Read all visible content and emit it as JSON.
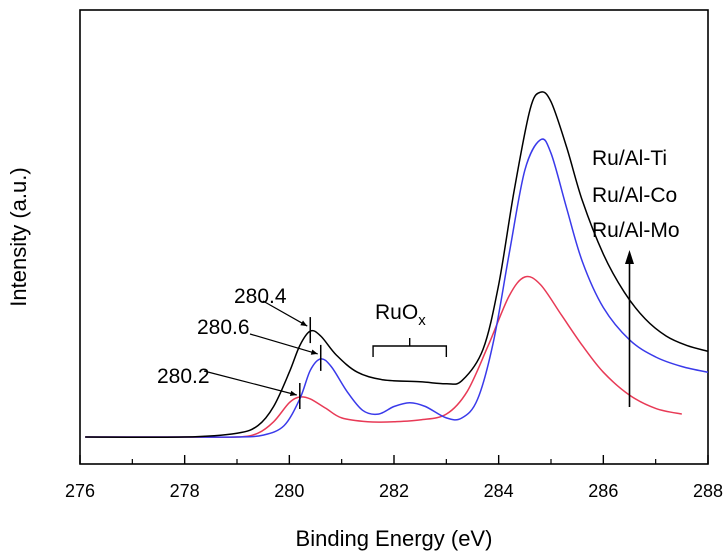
{
  "chart_data": {
    "type": "line",
    "xlabel": "Binding Energy (eV)",
    "ylabel": "Intensity (a.u.)",
    "xlim": [
      276,
      288
    ],
    "x_ticks": [
      "276",
      "278",
      "280",
      "282",
      "284",
      "286",
      "288"
    ],
    "grid": false,
    "legend": {
      "position": "top-right",
      "entries": [
        "Ru/Al-Ti",
        "Ru/Al-Co",
        "Ru/Al-Mo"
      ]
    },
    "series": [
      {
        "name": "Ru/Al-Ti",
        "color": "#000000",
        "points": [
          [
            276.1,
            0.0
          ],
          [
            278.0,
            0.0
          ],
          [
            279.0,
            0.01
          ],
          [
            279.4,
            0.03
          ],
          [
            279.7,
            0.08
          ],
          [
            280.0,
            0.17
          ],
          [
            280.2,
            0.24
          ],
          [
            280.4,
            0.278
          ],
          [
            280.6,
            0.265
          ],
          [
            280.9,
            0.215
          ],
          [
            281.3,
            0.17
          ],
          [
            281.8,
            0.15
          ],
          [
            282.5,
            0.145
          ],
          [
            283.0,
            0.14
          ],
          [
            283.3,
            0.148
          ],
          [
            283.7,
            0.23
          ],
          [
            284.0,
            0.4
          ],
          [
            284.3,
            0.65
          ],
          [
            284.6,
            0.86
          ],
          [
            284.8,
            0.905
          ],
          [
            285.0,
            0.88
          ],
          [
            285.3,
            0.76
          ],
          [
            285.6,
            0.62
          ],
          [
            286.0,
            0.48
          ],
          [
            286.4,
            0.38
          ],
          [
            286.8,
            0.31
          ],
          [
            287.2,
            0.265
          ],
          [
            287.6,
            0.24
          ],
          [
            288.0,
            0.225
          ]
        ]
      },
      {
        "name": "Ru/Al-Co",
        "color": "#3a3aea",
        "points": [
          [
            276.1,
            0.0
          ],
          [
            278.0,
            0.0
          ],
          [
            279.0,
            0.0
          ],
          [
            279.5,
            0.005
          ],
          [
            279.9,
            0.03
          ],
          [
            280.2,
            0.1
          ],
          [
            280.4,
            0.175
          ],
          [
            280.6,
            0.205
          ],
          [
            280.8,
            0.185
          ],
          [
            281.1,
            0.12
          ],
          [
            281.4,
            0.07
          ],
          [
            281.7,
            0.06
          ],
          [
            282.0,
            0.08
          ],
          [
            282.3,
            0.09
          ],
          [
            282.6,
            0.08
          ],
          [
            283.0,
            0.05
          ],
          [
            283.3,
            0.05
          ],
          [
            283.6,
            0.1
          ],
          [
            283.9,
            0.25
          ],
          [
            284.2,
            0.48
          ],
          [
            284.5,
            0.7
          ],
          [
            284.8,
            0.78
          ],
          [
            285.0,
            0.745
          ],
          [
            285.3,
            0.6
          ],
          [
            285.6,
            0.46
          ],
          [
            286.0,
            0.34
          ],
          [
            286.5,
            0.255
          ],
          [
            287.0,
            0.21
          ],
          [
            287.5,
            0.185
          ],
          [
            288.0,
            0.17
          ]
        ]
      },
      {
        "name": "Ru/Al-Mo",
        "color": "#e83a56",
        "points": [
          [
            276.1,
            0.0
          ],
          [
            278.0,
            0.0
          ],
          [
            279.0,
            0.0
          ],
          [
            279.4,
            0.01
          ],
          [
            279.7,
            0.04
          ],
          [
            280.0,
            0.09
          ],
          [
            280.2,
            0.105
          ],
          [
            280.4,
            0.1
          ],
          [
            280.7,
            0.075
          ],
          [
            281.0,
            0.05
          ],
          [
            281.5,
            0.04
          ],
          [
            282.0,
            0.04
          ],
          [
            282.5,
            0.045
          ],
          [
            283.0,
            0.06
          ],
          [
            283.4,
            0.12
          ],
          [
            283.8,
            0.24
          ],
          [
            284.2,
            0.37
          ],
          [
            284.5,
            0.42
          ],
          [
            284.8,
            0.4
          ],
          [
            285.2,
            0.32
          ],
          [
            285.6,
            0.24
          ],
          [
            286.0,
            0.17
          ],
          [
            286.5,
            0.11
          ],
          [
            287.0,
            0.075
          ],
          [
            287.5,
            0.06
          ]
        ]
      }
    ],
    "annotations": {
      "peak_labels": [
        {
          "text": "280.4",
          "x": 280.4,
          "series": "Ru/Al-Ti"
        },
        {
          "text": "280.6",
          "x": 280.6,
          "series": "Ru/Al-Co"
        },
        {
          "text": "280.2",
          "x": 280.2,
          "series": "Ru/Al-Mo"
        }
      ],
      "bracket": {
        "text_main": "RuO",
        "text_sub": "x",
        "x_start": 281.6,
        "x_end": 283.0
      },
      "arrow": {
        "x": 286.5,
        "direction": "up"
      }
    }
  }
}
